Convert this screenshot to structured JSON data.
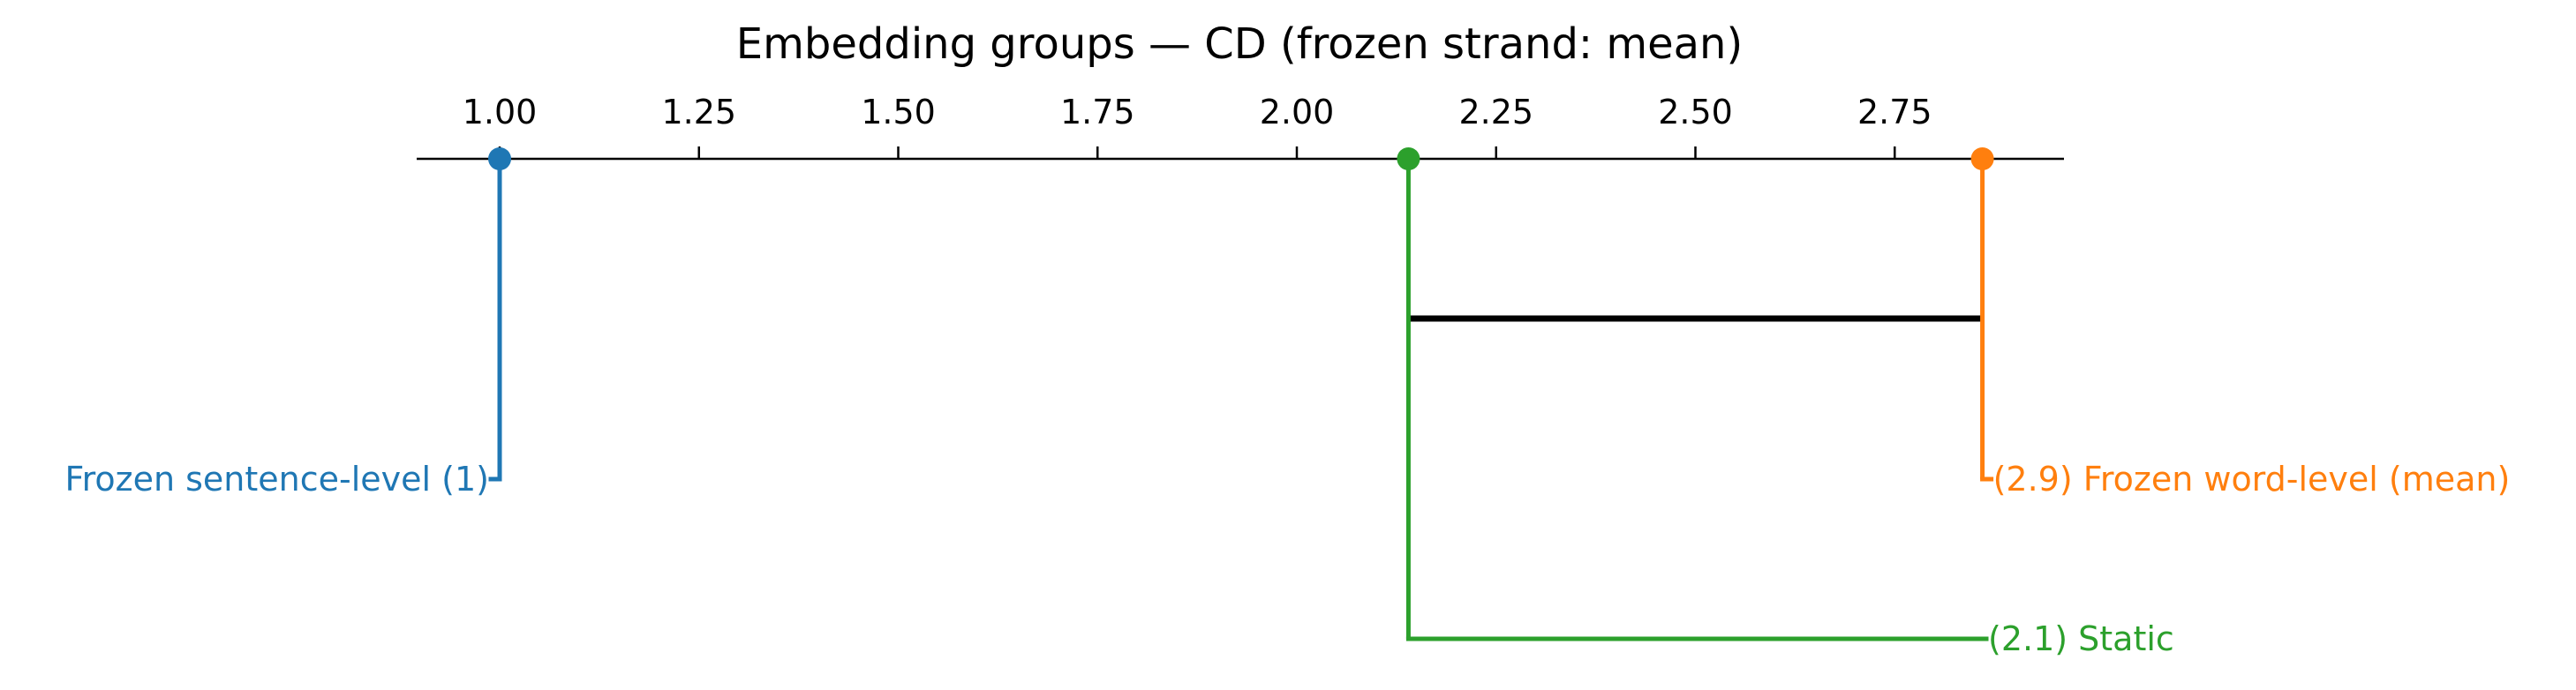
{
  "chart_data": {
    "type": "critical-difference",
    "title": "Embedding groups — CD (frozen strand: mean)",
    "xlim": [
      0.9,
      2.95
    ],
    "ticks": [
      1.0,
      1.25,
      1.5,
      1.75,
      2.0,
      2.25,
      2.5,
      2.75
    ],
    "tick_labels": [
      "1.00",
      "1.25",
      "1.50",
      "1.75",
      "2.00",
      "2.25",
      "2.50",
      "2.75"
    ],
    "methods": [
      {
        "name": "Frozen sentence-level",
        "rank": 1.0,
        "label": "Frozen sentence-level (1)",
        "side": "left",
        "level": 1,
        "color": "#1f77b4"
      },
      {
        "name": "Frozen word-level (mean)",
        "rank": 2.86,
        "label": "(2.9) Frozen word-level (mean)",
        "side": "right",
        "level": 1,
        "color": "#ff7f0e"
      },
      {
        "name": "Static",
        "rank": 2.14,
        "label": "(2.1) Static",
        "side": "right",
        "level": 2,
        "color": "#2ca02c"
      }
    ],
    "cliques": [
      {
        "from": 2.14,
        "to": 2.86
      }
    ]
  }
}
